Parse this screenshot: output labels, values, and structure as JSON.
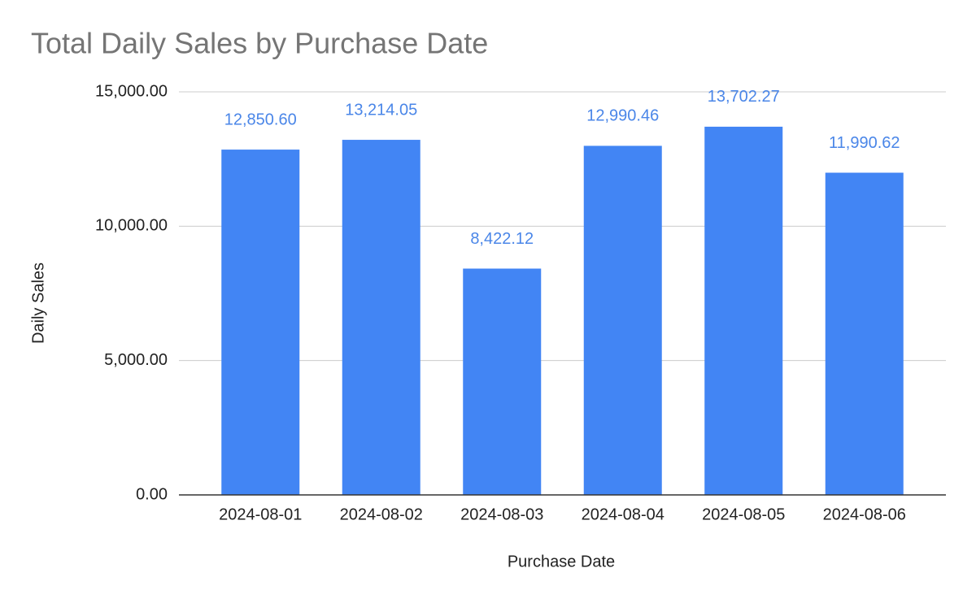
{
  "chart_data": {
    "type": "bar",
    "title": "Total Daily Sales by Purchase Date",
    "x_label": "Purchase Date",
    "y_label": "Daily Sales",
    "categories": [
      "2024-08-01",
      "2024-08-02",
      "2024-08-03",
      "2024-08-04",
      "2024-08-05",
      "2024-08-06"
    ],
    "values": [
      12850.6,
      13214.05,
      8422.12,
      12990.46,
      13702.27,
      11990.62
    ],
    "value_labels": [
      "12,850.60",
      "13,214.05",
      "8,422.12",
      "12,990.46",
      "13,702.27",
      "11,990.62"
    ],
    "color": "#4285f4",
    "value_label_color": "#4a86e8",
    "ylim": [
      0,
      15000
    ],
    "yticks": [
      {
        "value": 0,
        "label": "0.00"
      },
      {
        "value": 5000,
        "label": "5,000.00"
      },
      {
        "value": 10000,
        "label": "10,000.00"
      },
      {
        "value": 15000,
        "label": "15,000.00"
      }
    ],
    "grid": true
  }
}
